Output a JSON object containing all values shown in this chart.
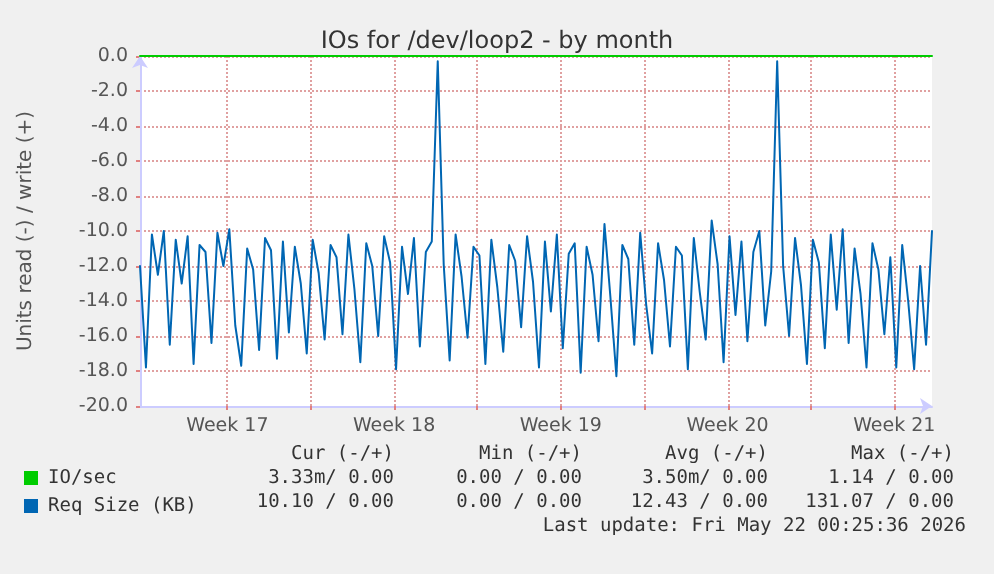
{
  "chart_data": {
    "type": "line",
    "title": "IOs for /dev/loop2 - by month",
    "ylabel": "Units read (-) / write (+)",
    "xlim": [
      "2026-04-19T20:00",
      "2026-05-23T02:00"
    ],
    "xticks": [
      {
        "value": "2026-04-23T12:00",
        "label": "Week 17"
      },
      {
        "value": "2026-04-27T00:00",
        "label": null
      },
      {
        "value": "2026-04-30T12:00",
        "label": "Week 18"
      },
      {
        "value": "2026-05-04T00:00",
        "label": null
      },
      {
        "value": "2026-05-07T12:00",
        "label": "Week 19"
      },
      {
        "value": "2026-05-11T00:00",
        "label": null
      },
      {
        "value": "2026-05-14T12:00",
        "label": "Week 20"
      },
      {
        "value": "2026-05-18T00:00",
        "label": null
      },
      {
        "value": "2026-05-21T12:00",
        "label": "Week 21"
      }
    ],
    "ylim": [
      -20,
      0
    ],
    "yticks": [
      {
        "value": -20,
        "label": "-20.0"
      },
      {
        "value": -18,
        "label": "-18.0"
      },
      {
        "value": -16,
        "label": "-16.0"
      },
      {
        "value": -14,
        "label": "-14.0"
      },
      {
        "value": -12,
        "label": "-12.0"
      },
      {
        "value": -10,
        "label": "-10.0"
      },
      {
        "value": -8,
        "label": "-8.0"
      },
      {
        "value": -6,
        "label": "-6.0"
      },
      {
        "value": -4,
        "label": "-4.0"
      },
      {
        "value": -2,
        "label": "-2.0"
      },
      {
        "value": 0,
        "label": "0.0"
      }
    ],
    "grid": true,
    "legend": "bottom left",
    "marker": "none",
    "line_style": "solid",
    "series": [
      {
        "name": "IO/sec",
        "color": "#00cc00",
        "x": [
          "2026-04-19T20:00",
          "2026-05-23T02:00"
        ],
        "values": [
          0,
          0
        ]
      },
      {
        "name": "Req Size (KB)",
        "color": "#0066b3",
        "x": [
          "2026-04-19T20:00",
          "2026-04-20T02:00",
          "2026-04-20T08:00",
          "2026-04-20T14:00",
          "2026-04-20T20:00",
          "2026-04-21T02:00",
          "2026-04-21T08:00",
          "2026-04-21T14:00",
          "2026-04-21T20:00",
          "2026-04-22T02:00",
          "2026-04-22T08:00",
          "2026-04-22T14:00",
          "2026-04-22T20:00",
          "2026-04-23T02:00",
          "2026-04-23T08:00",
          "2026-04-23T14:00",
          "2026-04-23T20:00",
          "2026-04-24T02:00",
          "2026-04-24T08:00",
          "2026-04-24T14:00",
          "2026-04-24T20:00",
          "2026-04-25T02:00",
          "2026-04-25T08:00",
          "2026-04-25T14:00",
          "2026-04-25T20:00",
          "2026-04-26T02:00",
          "2026-04-26T08:00",
          "2026-04-26T14:00",
          "2026-04-26T20:00",
          "2026-04-27T02:00",
          "2026-04-27T08:00",
          "2026-04-27T14:00",
          "2026-04-27T20:00",
          "2026-04-28T02:00",
          "2026-04-28T08:00",
          "2026-04-28T14:00",
          "2026-04-28T20:00",
          "2026-04-29T02:00",
          "2026-04-29T08:00",
          "2026-04-29T14:00",
          "2026-04-29T20:00",
          "2026-04-30T02:00",
          "2026-04-30T08:00",
          "2026-04-30T14:00",
          "2026-04-30T20:00",
          "2026-05-01T02:00",
          "2026-05-01T08:00",
          "2026-05-01T14:00",
          "2026-05-01T20:00",
          "2026-05-02T02:00",
          "2026-05-02T08:00",
          "2026-05-02T14:00",
          "2026-05-02T20:00",
          "2026-05-03T02:00",
          "2026-05-03T08:00",
          "2026-05-03T14:00",
          "2026-05-03T20:00",
          "2026-05-04T02:00",
          "2026-05-04T08:00",
          "2026-05-04T14:00",
          "2026-05-04T20:00",
          "2026-05-05T02:00",
          "2026-05-05T08:00",
          "2026-05-05T14:00",
          "2026-05-05T20:00",
          "2026-05-06T02:00",
          "2026-05-06T08:00",
          "2026-05-06T14:00",
          "2026-05-06T20:00",
          "2026-05-07T02:00",
          "2026-05-07T08:00",
          "2026-05-07T14:00",
          "2026-05-07T20:00",
          "2026-05-08T02:00",
          "2026-05-08T08:00",
          "2026-05-08T14:00",
          "2026-05-08T20:00",
          "2026-05-09T02:00",
          "2026-05-09T08:00",
          "2026-05-09T14:00",
          "2026-05-09T20:00",
          "2026-05-10T02:00",
          "2026-05-10T08:00",
          "2026-05-10T14:00",
          "2026-05-10T20:00",
          "2026-05-11T02:00",
          "2026-05-11T08:00",
          "2026-05-11T14:00",
          "2026-05-11T20:00",
          "2026-05-12T02:00",
          "2026-05-12T08:00",
          "2026-05-12T14:00",
          "2026-05-12T20:00",
          "2026-05-13T02:00",
          "2026-05-13T08:00",
          "2026-05-13T14:00",
          "2026-05-13T20:00",
          "2026-05-14T02:00",
          "2026-05-14T08:00",
          "2026-05-14T14:00",
          "2026-05-14T20:00",
          "2026-05-15T02:00",
          "2026-05-15T08:00",
          "2026-05-15T14:00",
          "2026-05-15T20:00",
          "2026-05-16T02:00",
          "2026-05-16T08:00",
          "2026-05-16T14:00",
          "2026-05-16T20:00",
          "2026-05-17T02:00",
          "2026-05-17T08:00",
          "2026-05-17T14:00",
          "2026-05-17T20:00",
          "2026-05-18T02:00",
          "2026-05-18T08:00",
          "2026-05-18T14:00",
          "2026-05-18T20:00",
          "2026-05-19T02:00",
          "2026-05-19T08:00",
          "2026-05-19T14:00",
          "2026-05-19T20:00",
          "2026-05-20T02:00",
          "2026-05-20T08:00",
          "2026-05-20T14:00",
          "2026-05-20T20:00",
          "2026-05-21T02:00",
          "2026-05-21T08:00",
          "2026-05-21T14:00",
          "2026-05-21T20:00",
          "2026-05-22T02:00",
          "2026-05-22T08:00",
          "2026-05-22T14:00",
          "2026-05-22T20:00",
          "2026-05-23T02:00"
        ],
        "values": [
          -12.0,
          -17.8,
          -10.2,
          -12.5,
          -10.0,
          -16.5,
          -10.5,
          -13.0,
          -10.3,
          -17.6,
          -10.8,
          -11.2,
          -16.4,
          -10.1,
          -12.0,
          -9.9,
          -15.4,
          -17.7,
          -11.0,
          -12.2,
          -16.8,
          -10.4,
          -11.1,
          -17.3,
          -10.6,
          -15.8,
          -10.9,
          -13.0,
          -17.0,
          -10.5,
          -12.4,
          -16.2,
          -10.8,
          -11.5,
          -15.9,
          -10.2,
          -13.3,
          -17.5,
          -10.7,
          -12.0,
          -16.0,
          -10.3,
          -11.8,
          -17.9,
          -10.9,
          -13.6,
          -10.4,
          -16.6,
          -11.2,
          -10.6,
          -0.3,
          -11.9,
          -17.4,
          -10.2,
          -12.6,
          -16.1,
          -10.9,
          -11.4,
          -17.6,
          -10.5,
          -13.2,
          -16.9,
          -10.8,
          -11.7,
          -15.5,
          -10.3,
          -12.9,
          -17.8,
          -10.6,
          -14.6,
          -10.2,
          -16.7,
          -11.3,
          -10.7,
          -18.1,
          -10.9,
          -12.5,
          -16.3,
          -9.6,
          -13.8,
          -18.3,
          -10.8,
          -11.6,
          -16.5,
          -10.1,
          -14.2,
          -17.0,
          -10.7,
          -12.8,
          -16.6,
          -10.9,
          -11.4,
          -17.9,
          -10.4,
          -13.5,
          -16.2,
          -9.4,
          -11.9,
          -17.5,
          -10.3,
          -14.8,
          -10.6,
          -16.3,
          -11.2,
          -10.0,
          -15.4,
          -12.3,
          -0.3,
          -12.0,
          -16.0,
          -10.4,
          -13.1,
          -17.6,
          -10.5,
          -11.8,
          -16.7,
          -10.2,
          -14.5,
          -9.9,
          -16.4,
          -11.0,
          -13.6,
          -17.8,
          -10.7,
          -12.2,
          -15.9,
          -11.5,
          -17.8,
          -10.8,
          -14.0,
          -17.9,
          -12.0,
          -16.5,
          -10.0
        ]
      }
    ],
    "annotations": [
      "Cur (-/+)",
      "Min (-/+)",
      "Avg (-/+)",
      "Max (-/+)",
      "3.33m/ 0.00",
      "0.00 / 0.00",
      "3.50m/ 0.00",
      "1.14 / 0.00",
      "10.10 / 0.00",
      "0.00 / 0.00",
      "12.43 / 0.00",
      "131.07 / 0.00",
      "Last update: Fri May 22 00:25:36 2026"
    ]
  }
}
